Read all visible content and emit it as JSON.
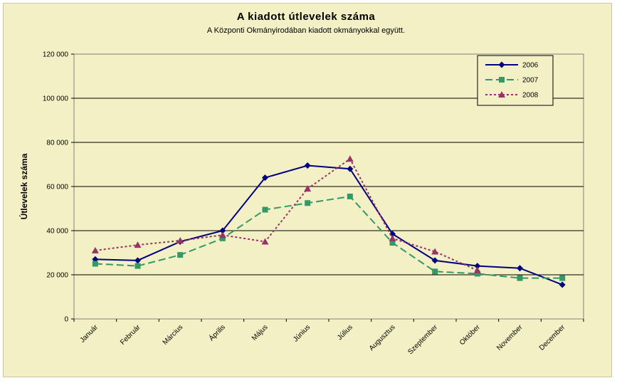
{
  "chart_data": {
    "type": "line",
    "title": "A  kiadott útlevelek száma",
    "subtitle": "A Központi Okmányirodában kiadott okmányokkal együtt.",
    "ylabel": "Útlevelek száma",
    "xlabel": "",
    "ylim": [
      0,
      120000
    ],
    "yticks": [
      0,
      20000,
      40000,
      60000,
      80000,
      100000,
      120000
    ],
    "ytick_labels": [
      "0",
      "20 000",
      "40 000",
      "60 000",
      "80 000",
      "100 000",
      "120 000"
    ],
    "categories": [
      "Január",
      "Február",
      "Március",
      "Április",
      "Május",
      "Június",
      "Július",
      "Augusztus",
      "Szeptember",
      "Október",
      "November",
      "December"
    ],
    "grid": true,
    "legend_position": "top-right",
    "series": [
      {
        "name": "2006",
        "color": "#000080",
        "marker": "diamond",
        "line": "solid",
        "values": [
          27000,
          26500,
          35000,
          40000,
          64000,
          69500,
          68000,
          38500,
          26500,
          24000,
          23000,
          15500
        ]
      },
      {
        "name": "2007",
        "color": "#339966",
        "marker": "square",
        "line": "dashed",
        "values": [
          25000,
          24000,
          29000,
          36500,
          49500,
          52500,
          55500,
          34500,
          21500,
          20500,
          18500,
          18500
        ]
      },
      {
        "name": "2008",
        "color": "#993366",
        "marker": "triangle",
        "line": "dotted",
        "values": [
          31000,
          33500,
          35500,
          38000,
          35000,
          59000,
          72500,
          36500,
          30500,
          22000,
          null,
          null
        ]
      }
    ]
  }
}
